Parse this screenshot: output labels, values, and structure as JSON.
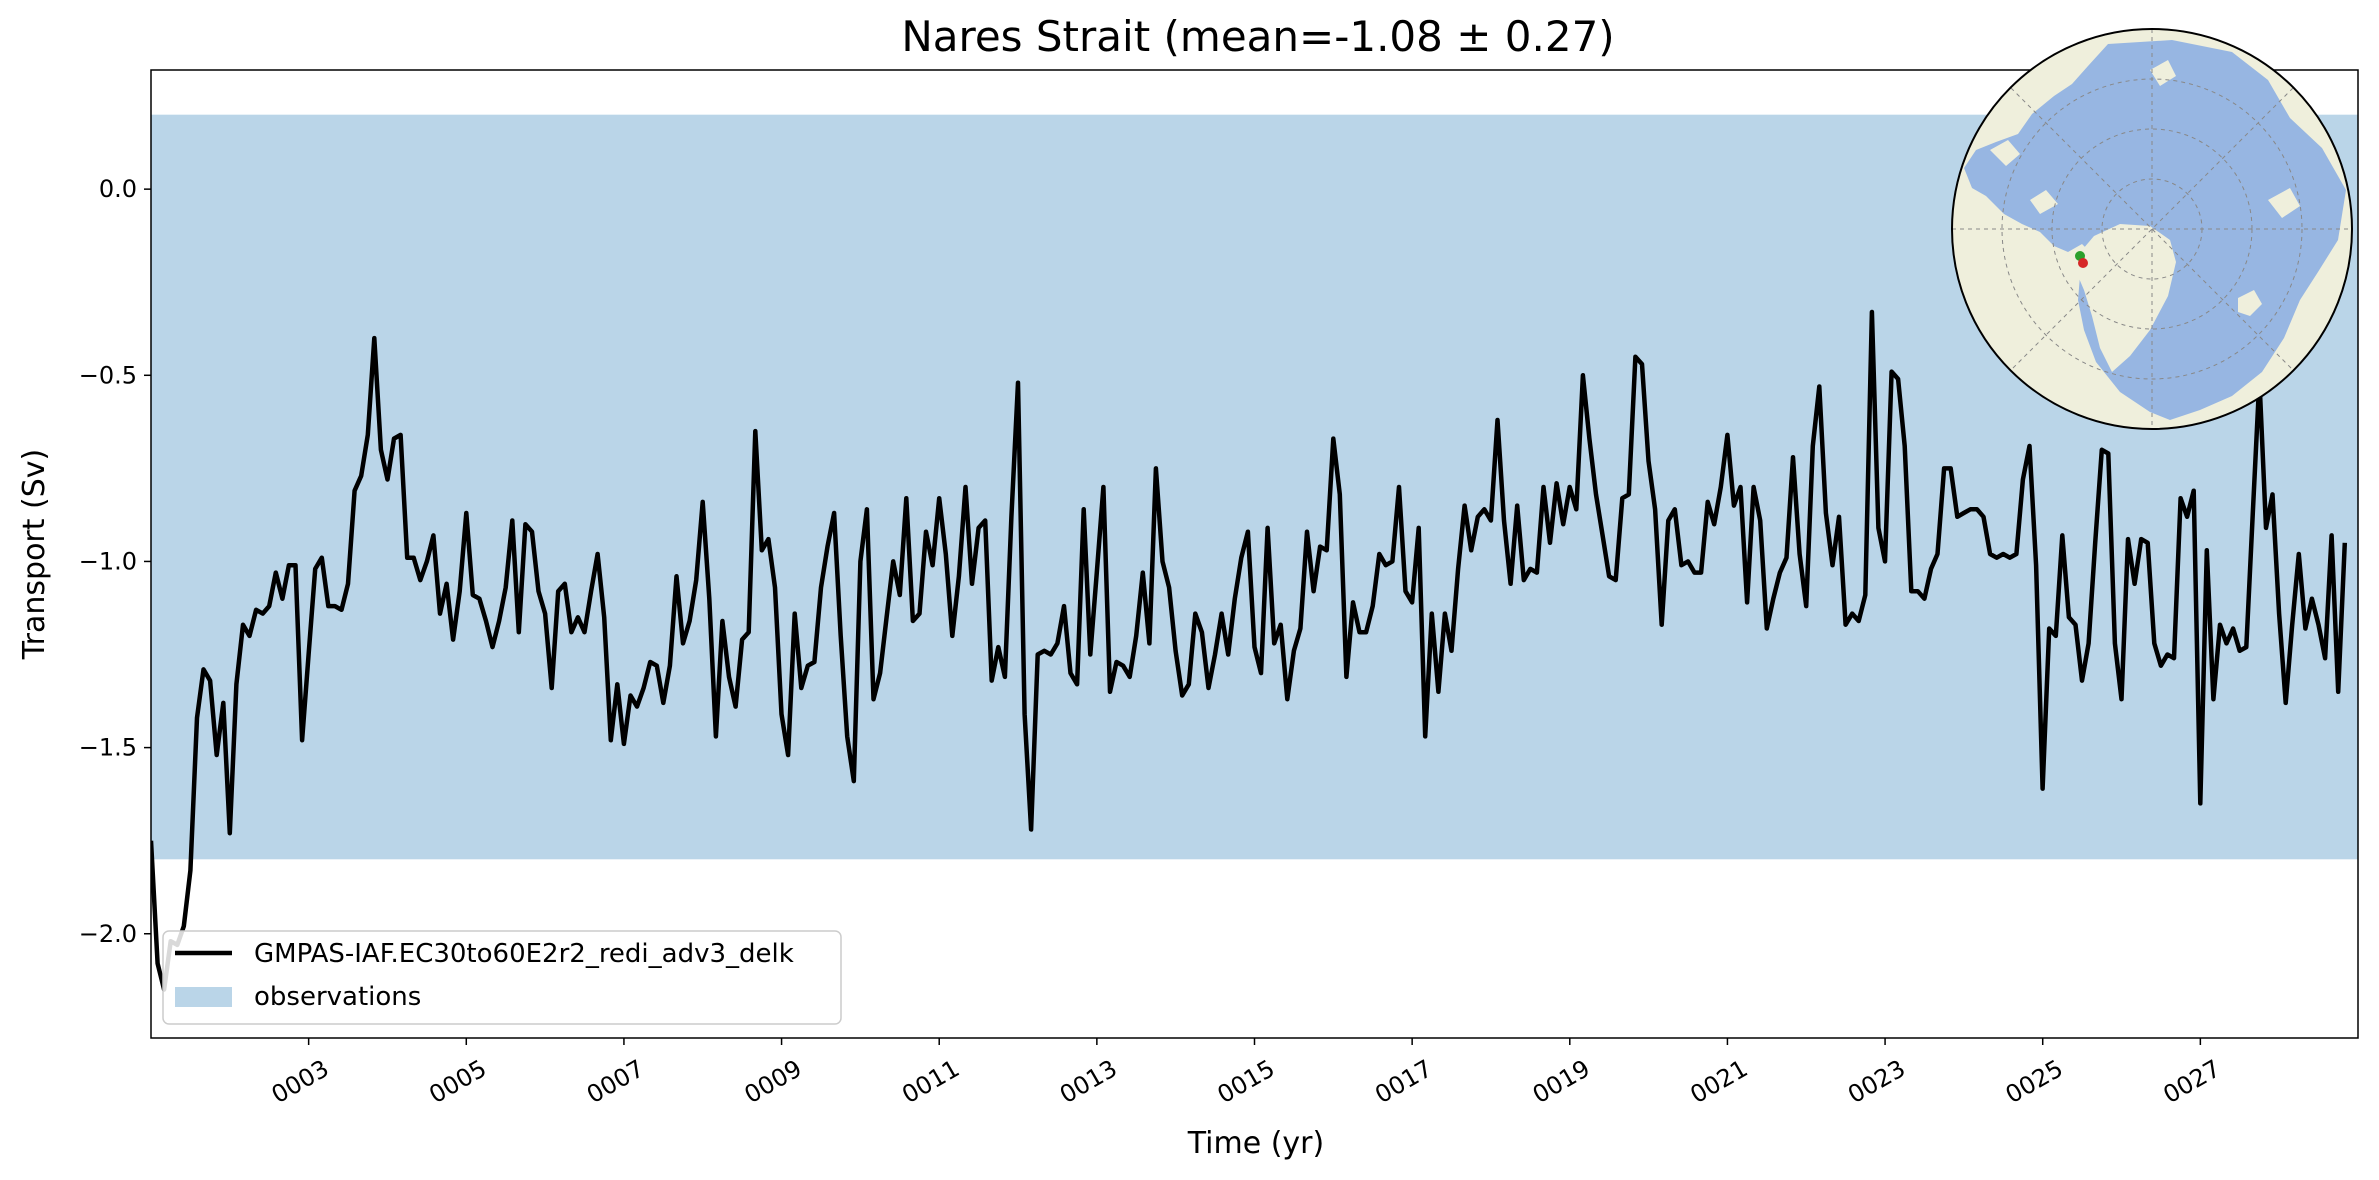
{
  "chart_data": {
    "type": "line",
    "title": "Nares Strait (mean=-1.08 ± 0.27)",
    "xlabel": "Time (yr)",
    "ylabel": "Transport (Sv)",
    "xlim": [
      1.0,
      29.0
    ],
    "ylim": [
      -2.28,
      0.32
    ],
    "x_ticks": [
      3,
      5,
      7,
      9,
      11,
      13,
      15,
      17,
      19,
      21,
      23,
      25,
      27
    ],
    "x_tick_labels": [
      "0003",
      "0005",
      "0007",
      "0009",
      "0011",
      "0013",
      "0015",
      "0017",
      "0019",
      "0021",
      "0023",
      "0025",
      "0027"
    ],
    "y_ticks": [
      0.0,
      -0.5,
      -1.0,
      -1.5,
      -2.0
    ],
    "y_tick_labels": [
      "0.0",
      "−0.5",
      "−1.0",
      "−1.5",
      "−2.0"
    ],
    "grid": false,
    "legend_position": "bottom-left",
    "observations_band": {
      "name": "observations",
      "min": -1.8,
      "max": 0.2,
      "color": "#bad5e8"
    },
    "series": [
      {
        "name": "GMPAS-IAF.EC30to60E2r2_redi_adv3_delk",
        "color": "#000000",
        "x_start": 1.0,
        "x_step": 0.08333,
        "values": [
          -1.75,
          -2.08,
          -2.15,
          -2.02,
          -2.03,
          -1.98,
          -1.83,
          -1.42,
          -1.29,
          -1.32,
          -1.52,
          -1.38,
          -1.73,
          -1.33,
          -1.17,
          -1.2,
          -1.13,
          -1.14,
          -1.12,
          -1.03,
          -1.1,
          -1.01,
          -1.01,
          -1.48,
          -1.25,
          -1.02,
          -0.99,
          -1.12,
          -1.12,
          -1.13,
          -1.06,
          -0.81,
          -0.77,
          -0.66,
          -0.4,
          -0.7,
          -0.78,
          -0.67,
          -0.66,
          -0.99,
          -0.99,
          -1.05,
          -1.0,
          -0.93,
          -1.14,
          -1.06,
          -1.21,
          -1.08,
          -0.87,
          -1.09,
          -1.1,
          -1.16,
          -1.23,
          -1.16,
          -1.07,
          -0.89,
          -1.19,
          -0.9,
          -0.92,
          -1.08,
          -1.14,
          -1.34,
          -1.08,
          -1.06,
          -1.19,
          -1.15,
          -1.19,
          -1.08,
          -0.98,
          -1.15,
          -1.48,
          -1.33,
          -1.49,
          -1.36,
          -1.39,
          -1.34,
          -1.27,
          -1.28,
          -1.38,
          -1.28,
          -1.04,
          -1.22,
          -1.16,
          -1.05,
          -0.84,
          -1.1,
          -1.47,
          -1.16,
          -1.31,
          -1.39,
          -1.21,
          -1.19,
          -0.65,
          -0.97,
          -0.94,
          -1.07,
          -1.41,
          -1.52,
          -1.14,
          -1.34,
          -1.28,
          -1.27,
          -1.07,
          -0.96,
          -0.87,
          -1.2,
          -1.47,
          -1.59,
          -1.0,
          -0.86,
          -1.37,
          -1.3,
          -1.15,
          -1.0,
          -1.09,
          -0.83,
          -1.16,
          -1.14,
          -0.92,
          -1.01,
          -0.83,
          -0.98,
          -1.2,
          -1.04,
          -0.8,
          -1.06,
          -0.91,
          -0.89,
          -1.32,
          -1.23,
          -1.31,
          -0.88,
          -0.52,
          -1.41,
          -1.72,
          -1.25,
          -1.24,
          -1.25,
          -1.22,
          -1.12,
          -1.3,
          -1.33,
          -0.86,
          -1.25,
          -1.03,
          -0.8,
          -1.35,
          -1.27,
          -1.28,
          -1.31,
          -1.2,
          -1.03,
          -1.22,
          -0.75,
          -1.0,
          -1.07,
          -1.24,
          -1.36,
          -1.33,
          -1.14,
          -1.19,
          -1.34,
          -1.25,
          -1.14,
          -1.25,
          -1.1,
          -0.99,
          -0.92,
          -1.23,
          -1.3,
          -0.91,
          -1.22,
          -1.17,
          -1.37,
          -1.24,
          -1.18,
          -0.92,
          -1.08,
          -0.96,
          -0.97,
          -0.67,
          -0.82,
          -1.31,
          -1.11,
          -1.19,
          -1.19,
          -1.12,
          -0.98,
          -1.01,
          -1.0,
          -0.8,
          -1.08,
          -1.11,
          -0.91,
          -1.47,
          -1.14,
          -1.35,
          -1.14,
          -1.24,
          -1.02,
          -0.85,
          -0.97,
          -0.88,
          -0.86,
          -0.89,
          -0.62,
          -0.89,
          -1.06,
          -0.85,
          -1.05,
          -1.02,
          -1.03,
          -0.8,
          -0.95,
          -0.79,
          -0.9,
          -0.8,
          -0.86,
          -0.5,
          -0.67,
          -0.82,
          -0.93,
          -1.04,
          -1.05,
          -0.83,
          -0.82,
          -0.45,
          -0.47,
          -0.73,
          -0.86,
          -1.17,
          -0.89,
          -0.86,
          -1.01,
          -1.0,
          -1.03,
          -1.03,
          -0.84,
          -0.9,
          -0.8,
          -0.66,
          -0.85,
          -0.8,
          -1.11,
          -0.8,
          -0.89,
          -1.18,
          -1.1,
          -1.03,
          -0.99,
          -0.72,
          -0.98,
          -1.12,
          -0.69,
          -0.53,
          -0.87,
          -1.01,
          -0.88,
          -1.17,
          -1.14,
          -1.16,
          -1.09,
          -0.33,
          -0.91,
          -1.0,
          -0.49,
          -0.51,
          -0.69,
          -1.08,
          -1.08,
          -1.1,
          -1.02,
          -0.98,
          -0.75,
          -0.75,
          -0.88,
          -0.87,
          -0.86,
          -0.86,
          -0.88,
          -0.98,
          -0.99,
          -0.98,
          -0.99,
          -0.98,
          -0.78,
          -0.69,
          -1.01,
          -1.61,
          -1.18,
          -1.2,
          -0.93,
          -1.15,
          -1.17,
          -1.32,
          -1.22,
          -0.95,
          -0.7,
          -0.71,
          -1.22,
          -1.37,
          -0.94,
          -1.06,
          -0.94,
          -0.95,
          -1.22,
          -1.28,
          -1.25,
          -1.26,
          -0.83,
          -0.88,
          -0.81,
          -1.65,
          -0.97,
          -1.37,
          -1.17,
          -1.22,
          -1.18,
          -1.24,
          -1.23,
          -0.87,
          -0.51,
          -0.91,
          -0.82,
          -1.14,
          -1.38,
          -1.17,
          -0.98,
          -1.18,
          -1.1,
          -1.17,
          -1.26,
          -0.93,
          -1.35,
          -0.95
        ]
      }
    ],
    "inset_map": {
      "projection": "north-polar-stereographic",
      "land_color": "#efefdc",
      "ocean_color": "#97b6e2",
      "marker_colors": [
        "#2ca02c",
        "#d62728"
      ]
    }
  }
}
